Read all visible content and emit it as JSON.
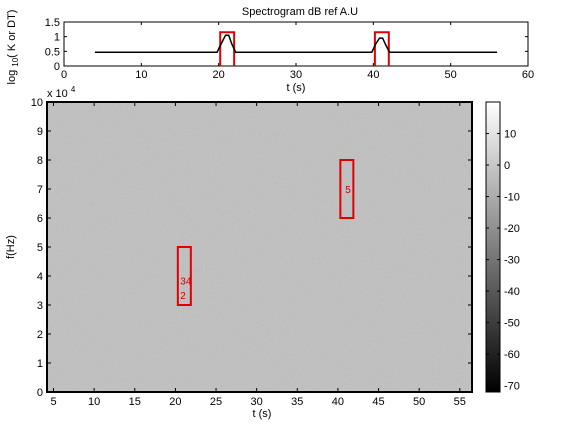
{
  "chart_data": [
    {
      "type": "line",
      "title": "Spectrogram dB ref A.U",
      "xlabel": "t (s)",
      "ylabel": "log10( K or DT)",
      "xlim": [
        0,
        60
      ],
      "ylim": [
        0,
        1.5
      ],
      "xticks": [
        "0",
        "10",
        "20",
        "30",
        "40",
        "50",
        "60"
      ],
      "yticks": [
        "0",
        "0.5",
        "1",
        "1.5"
      ],
      "grid": false,
      "series": [
        {
          "color": "#000000",
          "x": [
            4,
            19.8,
            20.4,
            20.9,
            21.3,
            21.7,
            22.2,
            39.8,
            40.3,
            40.8,
            41.2,
            41.6,
            42.1,
            56
          ],
          "values": [
            0.47,
            0.47,
            0.8,
            1.05,
            1.05,
            0.75,
            0.47,
            0.47,
            0.75,
            0.95,
            0.95,
            0.72,
            0.47,
            0.47
          ]
        }
      ],
      "highlights": [
        {
          "x": [
            20.2,
            22.0
          ],
          "y": [
            0,
            1.15
          ],
          "color": "#e00000"
        },
        {
          "x": [
            40.2,
            42.0
          ],
          "y": [
            0,
            1.15
          ],
          "color": "#e00000"
        }
      ]
    },
    {
      "type": "heatmap",
      "xlabel": "t (s)",
      "ylabel": "f(Hz)",
      "xlim": [
        4.2,
        56.5
      ],
      "ylim": [
        0,
        100000
      ],
      "y_multiplier": "x 10",
      "y_multiplier_exp": "4",
      "xticks": [
        "5",
        "10",
        "15",
        "20",
        "25",
        "30",
        "35",
        "40",
        "45",
        "50",
        "55"
      ],
      "yticks": [
        "0",
        "1",
        "2",
        "3",
        "4",
        "5",
        "6",
        "7",
        "8",
        "9",
        "10"
      ],
      "colorbar": {
        "min": -72,
        "max": 20,
        "ticks": [
          "10",
          "0",
          "-10",
          "-20",
          "-30",
          "-40",
          "-50",
          "-60",
          "-70"
        ],
        "colormap": "gray"
      },
      "detections": [
        {
          "x": [
            20.3,
            21.9
          ],
          "y": [
            30000,
            50000
          ],
          "color": "#e00000",
          "labels": [
            {
              "text": "34",
              "x": 20.6,
              "y": 38500
            },
            {
              "text": "2",
              "x": 20.6,
              "y": 33500
            }
          ]
        },
        {
          "x": [
            40.3,
            41.9
          ],
          "y": [
            60000,
            80000
          ],
          "color": "#e00000",
          "labels": [
            {
              "text": "5",
              "x": 40.9,
              "y": 70000
            }
          ]
        }
      ]
    }
  ]
}
